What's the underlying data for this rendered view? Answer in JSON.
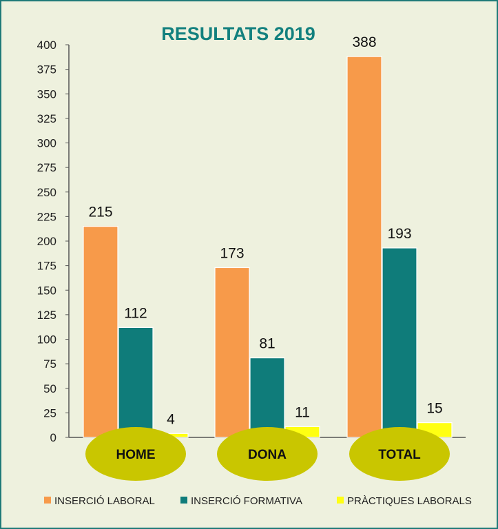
{
  "chart_data": {
    "type": "bar",
    "title": "RESULTATS 2019",
    "categories": [
      "HOME",
      "DONA",
      "TOTAL"
    ],
    "series": [
      {
        "name": "INSERCIÓ LABORAL",
        "values": [
          215,
          173,
          388
        ],
        "color": "#f79a4a"
      },
      {
        "name": "INSERCIÓ FORMATIVA",
        "values": [
          112,
          81,
          193
        ],
        "color": "#0f7c7a"
      },
      {
        "name": "PRÀCTIQUES LABORALS",
        "values": [
          4,
          11,
          15
        ],
        "color": "#ffff12"
      }
    ],
    "ylim": [
      0,
      400
    ],
    "yticks": [
      0,
      25,
      50,
      75,
      100,
      125,
      150,
      175,
      200,
      225,
      250,
      275,
      300,
      325,
      350,
      375,
      400
    ],
    "category_badge_color": "#c9c600",
    "background": "#eef1de",
    "frame_color": "#1f7a78",
    "legend_position": "bottom",
    "grid": false
  }
}
